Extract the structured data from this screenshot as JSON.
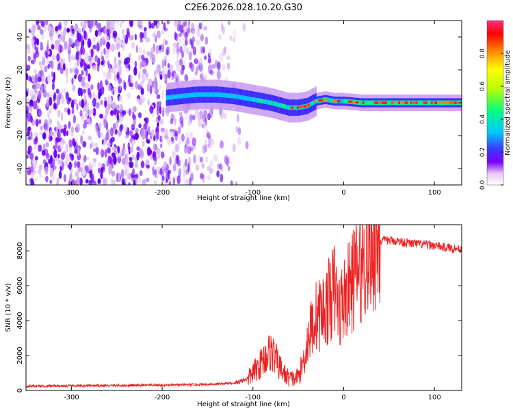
{
  "figure": {
    "title": "C2E6.2026.028.10.20.G30"
  },
  "chart_data": [
    {
      "type": "heatmap",
      "title": "C2E6.2026.028.10.20.G30",
      "xlabel": "Height of straight line (km)",
      "ylabel": "Frequency (Hz)",
      "xlim": [
        -350,
        130
      ],
      "ylim": [
        -50,
        50
      ],
      "x_ticks": [
        "-300",
        "-200",
        "-100",
        "0",
        "100"
      ],
      "y_ticks": [
        "-40",
        "-20",
        "0",
        "20",
        "40"
      ],
      "colorbar": {
        "label": "Normalized spectral amplitude",
        "range": [
          0,
          1
        ],
        "ticks": [
          "0.0",
          "0.2",
          "0.4",
          "0.6",
          "0.8"
        ],
        "colors": [
          "#ffffff",
          "#e6c8f5",
          "#7a00ff",
          "#3a3aff",
          "#00c8ff",
          "#00ff80",
          "#b4ff00",
          "#ffff00",
          "#ff8000",
          "#ff0000",
          "#ff3080"
        ]
      },
      "signal_ridge": {
        "x": [
          -195,
          -180,
          -160,
          -140,
          -120,
          -100,
          -80,
          -60,
          -50,
          -40,
          -30,
          -20,
          -10,
          0,
          20,
          60,
          100,
          130
        ],
        "frequency": [
          3,
          4,
          5,
          5,
          4,
          2,
          0,
          -3,
          -3,
          -2,
          1,
          2,
          1,
          1,
          0,
          0,
          0,
          0
        ]
      }
    },
    {
      "type": "line",
      "xlabel": "Height of straight line (km)",
      "ylabel": "SNR (10 * v/v)",
      "xlim": [
        -350,
        130
      ],
      "ylim": [
        0,
        9500
      ],
      "x_ticks": [
        "-300",
        "-200",
        "-100",
        "0",
        "100"
      ],
      "y_ticks": [
        "0",
        "2000",
        "4000",
        "6000",
        "8000"
      ],
      "series": [
        {
          "color": "#ee2222",
          "x": [
            -350,
            -300,
            -250,
            -200,
            -150,
            -120,
            -105,
            -95,
            -85,
            -80,
            -75,
            -70,
            -65,
            -60,
            -55,
            -50,
            -45,
            -40,
            -35,
            -30,
            -25,
            -20,
            -15,
            -10,
            -5,
            0,
            5,
            10,
            15,
            20,
            25,
            30,
            35,
            40,
            50,
            60,
            70,
            80,
            90,
            100,
            110,
            120,
            130
          ],
          "values": [
            250,
            260,
            280,
            300,
            350,
            420,
            700,
            1300,
            2000,
            2300,
            1800,
            1300,
            900,
            700,
            650,
            800,
            1500,
            2800,
            3700,
            4300,
            4400,
            4700,
            5300,
            5800,
            4600,
            5200,
            5700,
            6300,
            6800,
            7300,
            7800,
            8200,
            8400,
            8550,
            8600,
            8550,
            8450,
            8400,
            8350,
            8300,
            8200,
            8150,
            8100
          ]
        }
      ]
    }
  ]
}
